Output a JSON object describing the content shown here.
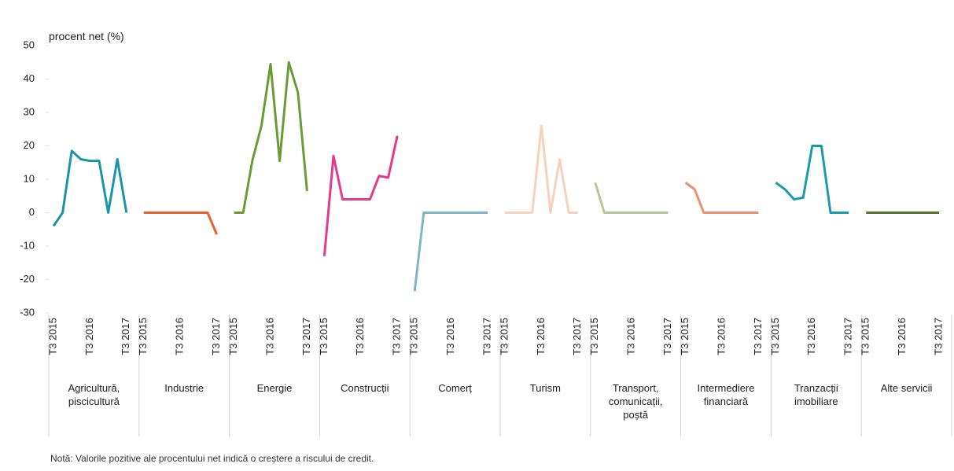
{
  "chart_data": {
    "type": "line",
    "y_label": "procent net (%)",
    "note": "Notă: Valorile pozitive ale procentului net indică o creștere a riscului de credit.",
    "categories": [
      "T3 2015",
      null,
      null,
      null,
      "T3 2016",
      null,
      null,
      null,
      "T3 2017"
    ],
    "ylim": [
      -30,
      50
    ],
    "yticks": [
      -30,
      -20,
      -10,
      0,
      10,
      20,
      30,
      40,
      50
    ],
    "series": [
      {
        "name": "Agricultură, piscicultură",
        "color": "#1b95a5",
        "values": [
          -4,
          0,
          18.5,
          16,
          15.5,
          15.5,
          0,
          16,
          0
        ]
      },
      {
        "name": "Industrie",
        "color": "#e8622a",
        "values": [
          0,
          0,
          0,
          0,
          0,
          0,
          0,
          0,
          -6.5
        ]
      },
      {
        "name": "Energie",
        "color": "#6a9c34",
        "values": [
          0,
          0,
          15.5,
          26,
          44.5,
          15.5,
          45,
          36,
          6.5
        ]
      },
      {
        "name": "Construcții",
        "color": "#e6398a",
        "values": [
          -13,
          17,
          4,
          4,
          4,
          4,
          11,
          10.5,
          23
        ]
      },
      {
        "name": "Comerț",
        "color": "#7fb6c3",
        "values": [
          -23.5,
          0,
          0,
          0,
          0,
          0,
          0,
          0,
          0
        ]
      },
      {
        "name": "Turism",
        "color": "#f5d2bd",
        "values": [
          0,
          0,
          0,
          0,
          26,
          0,
          16,
          0,
          0
        ]
      },
      {
        "name": "Transport, comunicații, poștă",
        "color": "#b4c99a",
        "values": [
          9,
          0,
          0,
          0,
          0,
          0,
          0,
          0,
          0
        ]
      },
      {
        "name": "Intermediere financiară",
        "color": "#e8916a",
        "values": [
          9,
          7,
          0,
          0,
          0,
          0,
          0,
          0,
          0
        ]
      },
      {
        "name": "Tranzacții imobiliare",
        "color": "#1a9aaa",
        "values": [
          9,
          7,
          4,
          4.5,
          20,
          20,
          0,
          0,
          0
        ]
      },
      {
        "name": "Alte servicii",
        "color": "#4e7a2a",
        "values": [
          0,
          0,
          0,
          0,
          0,
          0,
          0,
          0,
          0
        ]
      }
    ]
  }
}
